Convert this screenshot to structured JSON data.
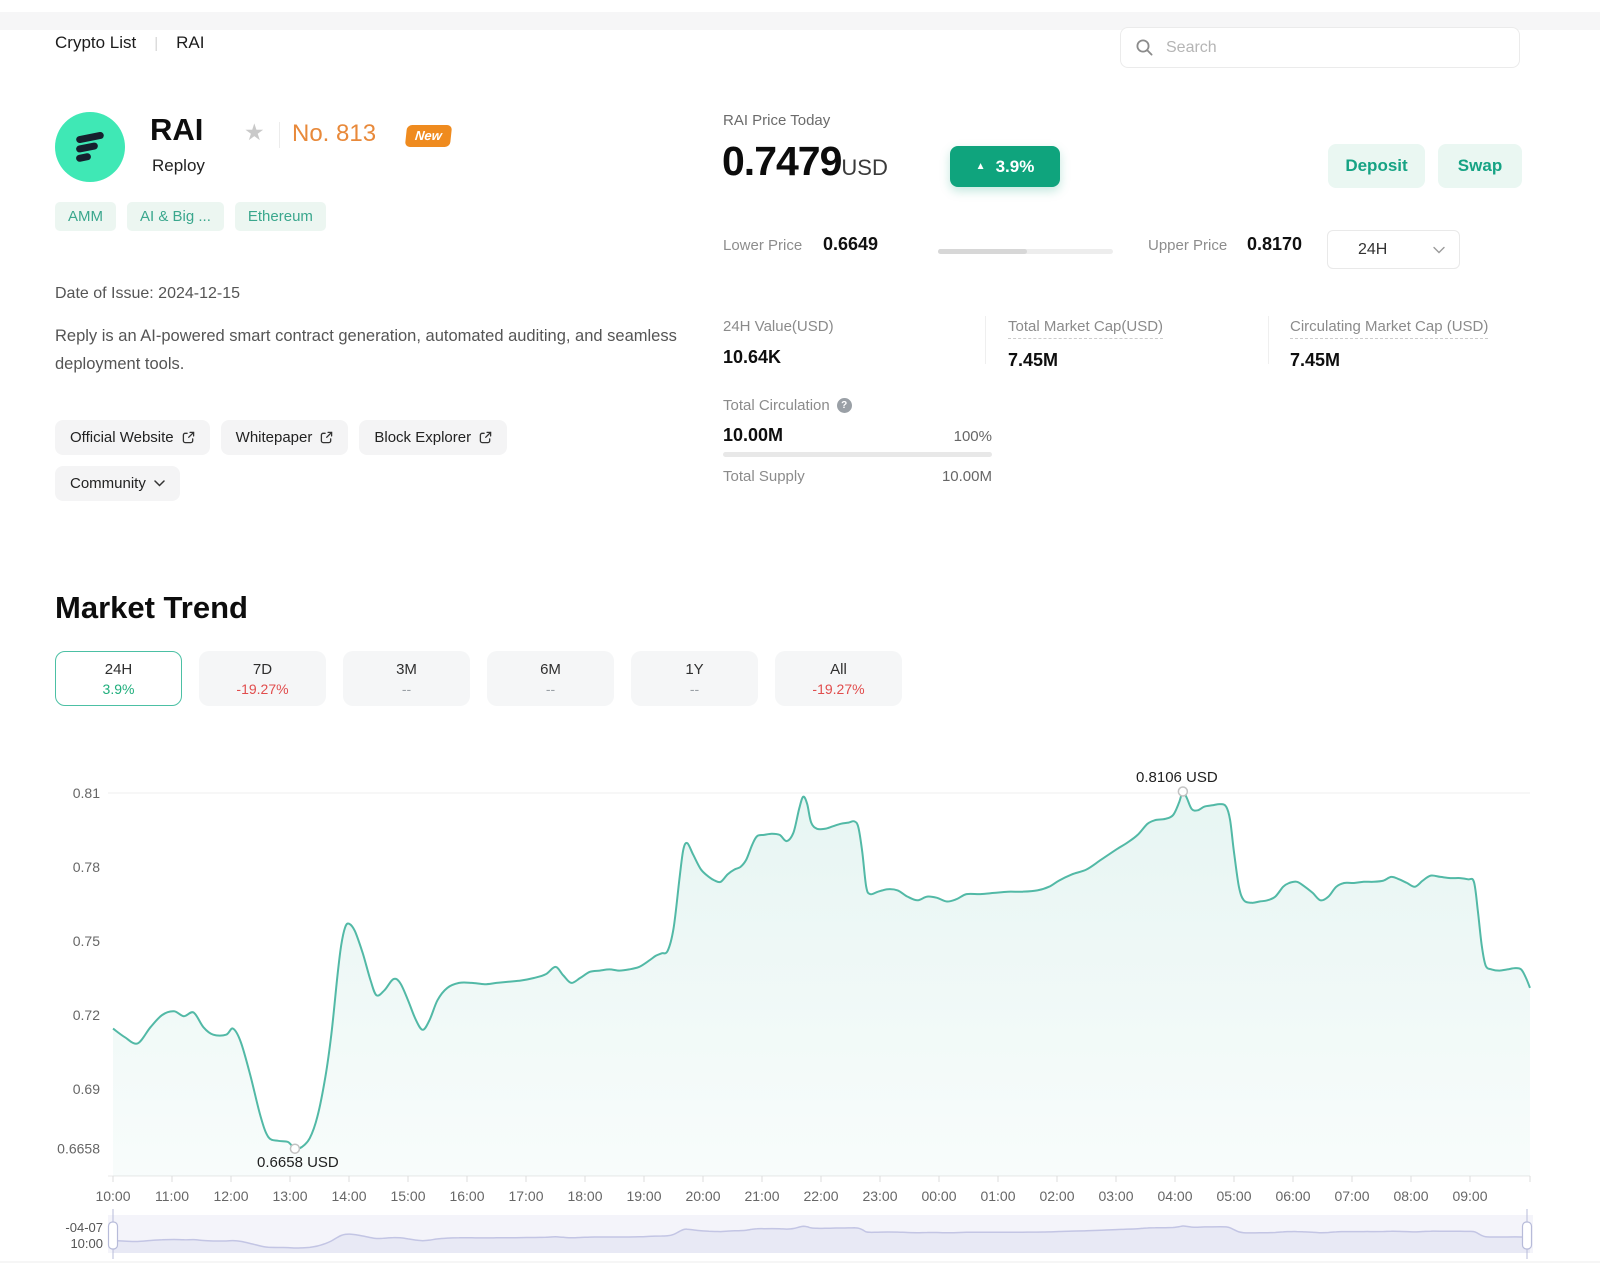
{
  "breadcrumb": {
    "items": [
      "Crypto List",
      "RAI"
    ],
    "separator": "|"
  },
  "search": {
    "placeholder": "Search"
  },
  "token": {
    "symbol": "RAI",
    "name": "Reploy",
    "rank": "No. 813",
    "new_badge": "New",
    "tags": [
      "AMM",
      "AI & Big ...",
      "Ethereum"
    ],
    "date_of_issue": "Date of Issue: 2024-12-15",
    "description": "Reply is an AI-powered smart contract generation, automated auditing, and seamless deployment tools.",
    "links": [
      {
        "label": "Official Website"
      },
      {
        "label": "Whitepaper"
      },
      {
        "label": "Block Explorer"
      }
    ],
    "community_label": "Community"
  },
  "price_panel": {
    "title": "RAI Price Today",
    "price": "0.7479",
    "currency": "USD",
    "change_pct": "3.9%",
    "deposit_label": "Deposit",
    "swap_label": "Swap",
    "lower_label": "Lower Price",
    "lower_value": "0.6649",
    "upper_label": "Upper Price",
    "upper_value": "0.8170",
    "range_selector": "24H",
    "range_fill_pct": 51,
    "stats": [
      {
        "label": "24H Value(USD)",
        "value": "10.64K"
      },
      {
        "label": "Total Market Cap(USD)",
        "value": "7.45M"
      },
      {
        "label": "Circulating Market Cap (USD)",
        "value": "7.45M"
      }
    ],
    "circulation": {
      "label": "Total Circulation",
      "value": "10.00M",
      "pct": "100%",
      "supply_label": "Total Supply",
      "supply_value": "10.00M"
    }
  },
  "market_trend": {
    "title": "Market Trend",
    "periods": [
      {
        "label": "24H",
        "change": "3.9%",
        "state": "up",
        "active": true
      },
      {
        "label": "7D",
        "change": "-19.27%",
        "state": "down",
        "active": false
      },
      {
        "label": "3M",
        "change": "--",
        "state": "na",
        "active": false
      },
      {
        "label": "6M",
        "change": "--",
        "state": "na",
        "active": false
      },
      {
        "label": "1Y",
        "change": "--",
        "state": "na",
        "active": false
      },
      {
        "label": "All",
        "change": "-19.27%",
        "state": "down",
        "active": false
      }
    ]
  },
  "chart_data": {
    "type": "area",
    "title": "RAI 24H price trend (USD)",
    "x_unit": "minutes from 10:00",
    "x_labels": [
      "10:00",
      "11:00",
      "12:00",
      "13:00",
      "14:00",
      "15:00",
      "16:00",
      "17:00",
      "18:00",
      "19:00",
      "20:00",
      "21:00",
      "22:00",
      "23:00",
      "00:00",
      "01:00",
      "02:00",
      "03:00",
      "04:00",
      "05:00",
      "06:00",
      "07:00",
      "08:00",
      "09:00"
    ],
    "y_ticks": [
      {
        "v": 0.81,
        "label": "0.81"
      },
      {
        "v": 0.78,
        "label": "0.78"
      },
      {
        "v": 0.75,
        "label": "0.75"
      },
      {
        "v": 0.72,
        "label": "0.72"
      },
      {
        "v": 0.69,
        "label": "0.69"
      },
      {
        "v": 0.6658,
        "label": "0.6658"
      }
    ],
    "ylim": [
      0.6658,
      0.8106
    ],
    "min_point": {
      "t": 185,
      "v": 0.6658,
      "label": "0.6658 USD"
    },
    "max_point": {
      "t": 1088,
      "v": 0.8106,
      "label": "0.8106 USD"
    },
    "colors": {
      "line": "#52b9a6",
      "fill": "#52b9a6",
      "grid": "#efefef",
      "axis": "#e8e8e8",
      "nav_line": "#c3c5e4",
      "nav_fill": "#e8e9f5",
      "nav_band": "#f4f4fa",
      "nav_handle": "#b7bbd9"
    },
    "series": [
      {
        "name": "price",
        "points": [
          [
            0,
            0.7145
          ],
          [
            12,
            0.711
          ],
          [
            25,
            0.7085
          ],
          [
            38,
            0.715
          ],
          [
            50,
            0.72
          ],
          [
            62,
            0.7215
          ],
          [
            72,
            0.7195
          ],
          [
            82,
            0.721
          ],
          [
            92,
            0.715
          ],
          [
            102,
            0.712
          ],
          [
            115,
            0.712
          ],
          [
            122,
            0.7145
          ],
          [
            130,
            0.709
          ],
          [
            140,
            0.695
          ],
          [
            150,
            0.679
          ],
          [
            158,
            0.6705
          ],
          [
            168,
            0.669
          ],
          [
            178,
            0.6685
          ],
          [
            185,
            0.6658
          ],
          [
            192,
            0.6665
          ],
          [
            200,
            0.67
          ],
          [
            208,
            0.679
          ],
          [
            216,
            0.695
          ],
          [
            222,
            0.712
          ],
          [
            228,
            0.735
          ],
          [
            232,
            0.748
          ],
          [
            236,
            0.7555
          ],
          [
            240,
            0.757
          ],
          [
            246,
            0.754
          ],
          [
            254,
            0.745
          ],
          [
            262,
            0.734
          ],
          [
            268,
            0.728
          ],
          [
            276,
            0.73
          ],
          [
            285,
            0.7345
          ],
          [
            292,
            0.733
          ],
          [
            300,
            0.726
          ],
          [
            308,
            0.718
          ],
          [
            315,
            0.714
          ],
          [
            322,
            0.718
          ],
          [
            330,
            0.726
          ],
          [
            340,
            0.731
          ],
          [
            352,
            0.733
          ],
          [
            365,
            0.733
          ],
          [
            378,
            0.7325
          ],
          [
            390,
            0.733
          ],
          [
            402,
            0.7335
          ],
          [
            415,
            0.734
          ],
          [
            428,
            0.735
          ],
          [
            440,
            0.7365
          ],
          [
            450,
            0.7395
          ],
          [
            458,
            0.736
          ],
          [
            466,
            0.733
          ],
          [
            475,
            0.735
          ],
          [
            485,
            0.7375
          ],
          [
            495,
            0.738
          ],
          [
            505,
            0.7385
          ],
          [
            515,
            0.738
          ],
          [
            525,
            0.7385
          ],
          [
            535,
            0.7395
          ],
          [
            545,
            0.742
          ],
          [
            552,
            0.744
          ],
          [
            558,
            0.745
          ],
          [
            564,
            0.746
          ],
          [
            570,
            0.755
          ],
          [
            576,
            0.775
          ],
          [
            580,
            0.787
          ],
          [
            584,
            0.7897
          ],
          [
            590,
            0.785
          ],
          [
            598,
            0.779
          ],
          [
            606,
            0.776
          ],
          [
            612,
            0.7745
          ],
          [
            618,
            0.774
          ],
          [
            625,
            0.777
          ],
          [
            632,
            0.779
          ],
          [
            638,
            0.78
          ],
          [
            644,
            0.783
          ],
          [
            650,
            0.789
          ],
          [
            655,
            0.7925
          ],
          [
            662,
            0.793
          ],
          [
            670,
            0.7935
          ],
          [
            678,
            0.793
          ],
          [
            685,
            0.7905
          ],
          [
            692,
            0.794
          ],
          [
            698,
            0.804
          ],
          [
            702,
            0.8085
          ],
          [
            706,
            0.8055
          ],
          [
            710,
            0.798
          ],
          [
            716,
            0.7955
          ],
          [
            724,
            0.7955
          ],
          [
            732,
            0.7965
          ],
          [
            740,
            0.7975
          ],
          [
            748,
            0.798
          ],
          [
            754,
            0.7985
          ],
          [
            758,
            0.796
          ],
          [
            762,
            0.786
          ],
          [
            766,
            0.772
          ],
          [
            770,
            0.769
          ],
          [
            778,
            0.77
          ],
          [
            788,
            0.771
          ],
          [
            798,
            0.7705
          ],
          [
            808,
            0.768
          ],
          [
            818,
            0.7665
          ],
          [
            828,
            0.768
          ],
          [
            838,
            0.7675
          ],
          [
            848,
            0.766
          ],
          [
            858,
            0.767
          ],
          [
            868,
            0.769
          ],
          [
            882,
            0.769
          ],
          [
            896,
            0.7695
          ],
          [
            910,
            0.77
          ],
          [
            925,
            0.77
          ],
          [
            940,
            0.7705
          ],
          [
            952,
            0.772
          ],
          [
            962,
            0.7745
          ],
          [
            975,
            0.777
          ],
          [
            990,
            0.779
          ],
          [
            1005,
            0.783
          ],
          [
            1020,
            0.787
          ],
          [
            1032,
            0.79
          ],
          [
            1042,
            0.793
          ],
          [
            1052,
            0.7975
          ],
          [
            1060,
            0.799
          ],
          [
            1070,
            0.7995
          ],
          [
            1078,
            0.801
          ],
          [
            1084,
            0.806
          ],
          [
            1088,
            0.8106
          ],
          [
            1092,
            0.808
          ],
          [
            1097,
            0.8035
          ],
          [
            1103,
            0.803
          ],
          [
            1110,
            0.8045
          ],
          [
            1118,
            0.805
          ],
          [
            1126,
            0.8055
          ],
          [
            1132,
            0.8045
          ],
          [
            1136,
            0.799
          ],
          [
            1140,
            0.786
          ],
          [
            1145,
            0.772
          ],
          [
            1150,
            0.7665
          ],
          [
            1158,
            0.7655
          ],
          [
            1166,
            0.766
          ],
          [
            1174,
            0.7665
          ],
          [
            1182,
            0.768
          ],
          [
            1190,
            0.772
          ],
          [
            1196,
            0.7735
          ],
          [
            1204,
            0.774
          ],
          [
            1212,
            0.772
          ],
          [
            1220,
            0.7695
          ],
          [
            1228,
            0.7665
          ],
          [
            1236,
            0.768
          ],
          [
            1244,
            0.772
          ],
          [
            1252,
            0.7735
          ],
          [
            1262,
            0.7735
          ],
          [
            1272,
            0.774
          ],
          [
            1282,
            0.774
          ],
          [
            1292,
            0.7745
          ],
          [
            1300,
            0.776
          ],
          [
            1308,
            0.775
          ],
          [
            1316,
            0.7735
          ],
          [
            1324,
            0.772
          ],
          [
            1332,
            0.7745
          ],
          [
            1340,
            0.7765
          ],
          [
            1350,
            0.776
          ],
          [
            1360,
            0.7755
          ],
          [
            1370,
            0.7755
          ],
          [
            1378,
            0.775
          ],
          [
            1384,
            0.774
          ],
          [
            1388,
            0.762
          ],
          [
            1392,
            0.748
          ],
          [
            1396,
            0.74
          ],
          [
            1402,
            0.7385
          ],
          [
            1410,
            0.738
          ],
          [
            1418,
            0.7385
          ],
          [
            1426,
            0.739
          ],
          [
            1432,
            0.7385
          ],
          [
            1437,
            0.735
          ],
          [
            1441,
            0.731
          ]
        ]
      }
    ],
    "navigator": {
      "date_label_line1": "-04-07",
      "date_label_line2": "10:00"
    }
  },
  "colors": {
    "accent_teal": "#0fa47d",
    "logo_mint": "#3fe8b5",
    "rank_orange": "#e8893a",
    "new_badge_orange": "#ef8b1f",
    "tag_teal": "#3aa78d",
    "up_green": "#1fae7c",
    "down_red": "#e14d4d"
  }
}
